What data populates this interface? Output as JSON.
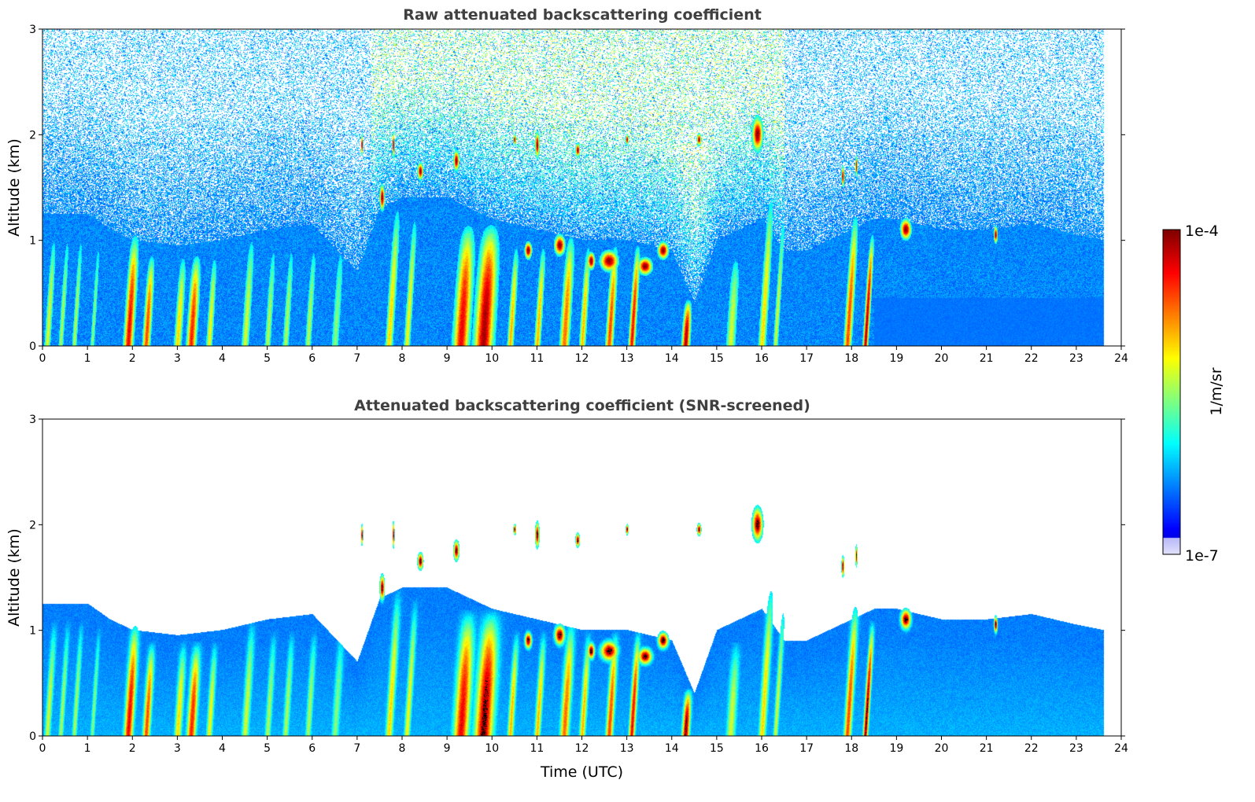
{
  "chart_data": [
    {
      "type": "heatmap",
      "id": "raw",
      "title": "Raw attenuated backscattering coefficient",
      "xlabel": "",
      "ylabel": "Altitude (km)",
      "xlim": [
        0,
        24
      ],
      "ylim": [
        0,
        3
      ],
      "xticks": [
        "0",
        "1",
        "2",
        "3",
        "4",
        "5",
        "6",
        "7",
        "8",
        "9",
        "10",
        "11",
        "12",
        "13",
        "14",
        "15",
        "16",
        "17",
        "18",
        "19",
        "20",
        "21",
        "22",
        "23",
        "24"
      ],
      "yticks": [
        "0",
        "1",
        "2",
        "3"
      ],
      "data_end_time": 23.6,
      "screened": false
    },
    {
      "type": "heatmap",
      "id": "snr",
      "title": "Attenuated backscattering coefficient (SNR-screened)",
      "xlabel": "Time (UTC)",
      "ylabel": "Altitude (km)",
      "xlim": [
        0,
        24
      ],
      "ylim": [
        0,
        3
      ],
      "xticks": [
        "0",
        "1",
        "2",
        "3",
        "4",
        "5",
        "6",
        "7",
        "8",
        "9",
        "10",
        "11",
        "12",
        "13",
        "14",
        "15",
        "16",
        "17",
        "18",
        "19",
        "20",
        "21",
        "22",
        "23",
        "24"
      ],
      "yticks": [
        "0",
        "1",
        "2",
        "3"
      ],
      "data_end_time": 23.6,
      "screened": true
    }
  ],
  "colorbar": {
    "min_label": "1e-7",
    "max_label": "1e-4",
    "unit_label": "1/m/sr",
    "colormap": "jet"
  },
  "features": {
    "boundary_layer_top_km": [
      [
        0,
        1.25
      ],
      [
        1,
        1.25
      ],
      [
        1.5,
        1.1
      ],
      [
        2,
        1.0
      ],
      [
        3,
        0.95
      ],
      [
        4,
        1.0
      ],
      [
        5,
        1.1
      ],
      [
        6,
        1.15
      ],
      [
        7,
        0.7
      ],
      [
        7.5,
        1.3
      ],
      [
        8,
        1.4
      ],
      [
        9,
        1.4
      ],
      [
        10,
        1.2
      ],
      [
        11,
        1.1
      ],
      [
        12,
        1.0
      ],
      [
        13,
        1.0
      ],
      [
        14,
        0.9
      ],
      [
        14.5,
        0.4
      ],
      [
        15,
        1.0
      ],
      [
        16,
        1.2
      ],
      [
        16.5,
        0.9
      ],
      [
        17,
        0.9
      ],
      [
        18,
        1.1
      ],
      [
        18.5,
        1.2
      ],
      [
        19,
        1.2
      ],
      [
        20,
        1.1
      ],
      [
        21,
        1.1
      ],
      [
        22,
        1.15
      ],
      [
        23,
        1.05
      ],
      [
        23.6,
        1.0
      ]
    ],
    "plumes": [
      [
        0.1,
        0.1,
        1.1,
        0.45
      ],
      [
        0.4,
        0.08,
        1.1,
        0.4
      ],
      [
        0.7,
        0.08,
        1.1,
        0.4
      ],
      [
        1.1,
        0.07,
        1.05,
        0.35
      ],
      [
        1.9,
        0.15,
        1.1,
        0.85
      ],
      [
        2.3,
        0.12,
        0.9,
        0.75
      ],
      [
        3.0,
        0.12,
        0.9,
        0.55
      ],
      [
        3.3,
        0.15,
        0.9,
        0.8
      ],
      [
        3.7,
        0.1,
        0.9,
        0.5
      ],
      [
        4.5,
        0.12,
        1.1,
        0.45
      ],
      [
        5.0,
        0.1,
        1.0,
        0.4
      ],
      [
        5.4,
        0.1,
        1.0,
        0.4
      ],
      [
        5.9,
        0.1,
        1.0,
        0.4
      ],
      [
        6.5,
        0.12,
        1.0,
        0.35
      ],
      [
        7.7,
        0.12,
        1.4,
        0.55
      ],
      [
        8.1,
        0.1,
        1.3,
        0.5
      ],
      [
        9.3,
        0.25,
        1.2,
        0.85
      ],
      [
        9.8,
        0.3,
        1.2,
        0.95
      ],
      [
        10.4,
        0.1,
        1.0,
        0.6
      ],
      [
        11.0,
        0.1,
        1.0,
        0.6
      ],
      [
        11.6,
        0.15,
        1.1,
        0.7
      ],
      [
        12.0,
        0.1,
        1.0,
        0.6
      ],
      [
        12.6,
        0.12,
        1.0,
        0.75
      ],
      [
        13.1,
        0.1,
        1.0,
        0.85
      ],
      [
        14.3,
        0.12,
        0.45,
        0.95
      ],
      [
        15.3,
        0.15,
        0.9,
        0.45
      ],
      [
        16.0,
        0.12,
        1.5,
        0.55
      ],
      [
        16.3,
        0.08,
        1.3,
        0.45
      ],
      [
        17.9,
        0.12,
        1.3,
        0.75
      ],
      [
        18.3,
        0.08,
        1.1,
        0.95
      ]
    ],
    "clouds": [
      [
        7.55,
        1.4,
        0.07,
        0.15
      ],
      [
        7.1,
        1.9,
        0.03,
        0.12
      ],
      [
        7.8,
        1.9,
        0.03,
        0.15
      ],
      [
        8.4,
        1.65,
        0.08,
        0.1
      ],
      [
        9.2,
        1.75,
        0.08,
        0.12
      ],
      [
        10.5,
        1.95,
        0.04,
        0.06
      ],
      [
        11.0,
        1.9,
        0.06,
        0.15
      ],
      [
        11.9,
        1.85,
        0.06,
        0.08
      ],
      [
        12.6,
        0.8,
        0.25,
        0.12
      ],
      [
        13.4,
        0.75,
        0.2,
        0.1
      ],
      [
        13.0,
        1.95,
        0.04,
        0.06
      ],
      [
        13.8,
        0.9,
        0.15,
        0.1
      ],
      [
        14.6,
        1.95,
        0.06,
        0.07
      ],
      [
        15.9,
        2.0,
        0.15,
        0.2
      ],
      [
        17.8,
        1.6,
        0.04,
        0.12
      ],
      [
        18.1,
        1.7,
        0.03,
        0.12
      ],
      [
        19.2,
        1.1,
        0.15,
        0.12
      ],
      [
        21.2,
        1.05,
        0.05,
        0.1
      ],
      [
        10.8,
        0.9,
        0.1,
        0.1
      ],
      [
        11.5,
        0.95,
        0.15,
        0.12
      ],
      [
        12.2,
        0.8,
        0.1,
        0.1
      ]
    ]
  }
}
